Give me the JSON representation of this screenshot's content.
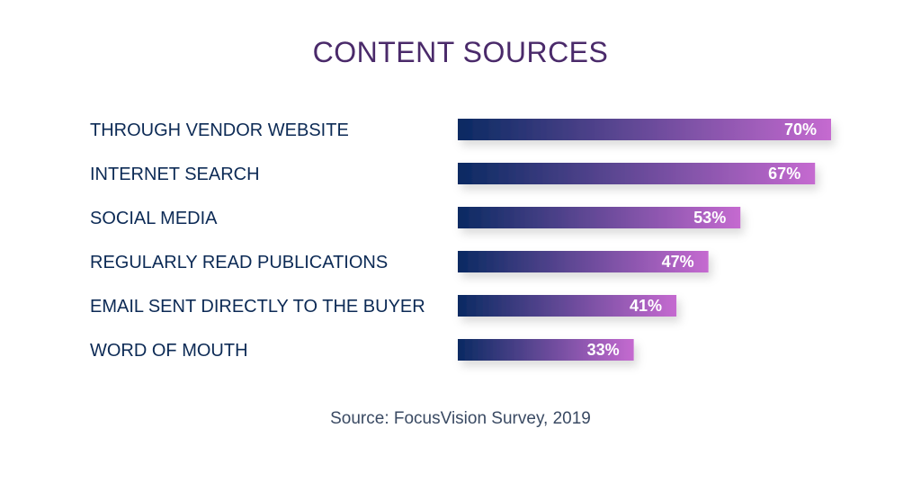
{
  "colors": {
    "title": "#4a2a6a",
    "label": "#0c2a55",
    "bar_start": "#0a2a62",
    "bar_end": "#c56ad0",
    "value_text": "#ffffff",
    "source_text": "#3a4a63"
  },
  "chart_data": {
    "type": "bar",
    "orientation": "horizontal",
    "title": "CONTENT SOURCES",
    "categories": [
      "THROUGH VENDOR WEBSITE",
      "INTERNET SEARCH",
      "SOCIAL MEDIA",
      "REGULARLY READ PUBLICATIONS",
      "EMAIL SENT DIRECTLY TO THE BUYER",
      "WORD OF MOUTH"
    ],
    "values": [
      70,
      67,
      53,
      47,
      41,
      33
    ],
    "value_labels": [
      "70%",
      "67%",
      "53%",
      "47%",
      "41%",
      "33%"
    ],
    "unit": "%",
    "xlim": [
      0,
      100
    ],
    "grid": false,
    "legend": "none"
  },
  "source": "Source: FocusVision Survey, 2019"
}
